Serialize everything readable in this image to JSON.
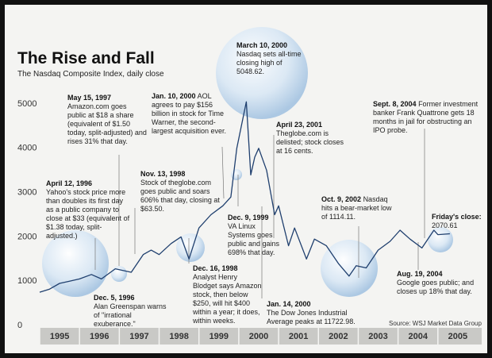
{
  "chart_data": {
    "type": "line",
    "title": "The Rise and Fall",
    "subtitle": "The Nasdaq Composite Index, daily close",
    "source": "Source: WSJ Market Data Group",
    "color": "#1f3f6e",
    "grid": false,
    "xlim": [
      1995,
      2006.1
    ],
    "xticks": [
      1995,
      1996,
      1997,
      1998,
      1999,
      2000,
      2001,
      2002,
      2003,
      2004,
      2005
    ],
    "ylim": [
      0,
      5400
    ],
    "yticks": [
      0,
      1000,
      2000,
      3000,
      4000,
      5000
    ],
    "series": [
      {
        "name": "Nasdaq Composite",
        "x": [
          1995.0,
          1995.25,
          1995.5,
          1995.75,
          1996.0,
          1996.3,
          1996.55,
          1996.9,
          1997.3,
          1997.6,
          1997.8,
          1998.0,
          1998.3,
          1998.55,
          1998.75,
          1999.0,
          1999.3,
          1999.6,
          1999.8,
          1999.95,
          2000.19,
          2000.3,
          2000.4,
          2000.5,
          2000.7,
          2000.9,
          2001.0,
          2001.25,
          2001.4,
          2001.7,
          2001.9,
          2002.2,
          2002.5,
          2002.77,
          2002.95,
          2003.2,
          2003.5,
          2003.8,
          2004.05,
          2004.3,
          2004.6,
          2004.9,
          2005.0,
          2005.3
        ],
        "values": [
          750,
          820,
          950,
          1000,
          1050,
          1150,
          1050,
          1280,
          1200,
          1600,
          1700,
          1600,
          1850,
          2000,
          1500,
          2200,
          2500,
          2700,
          2900,
          4000,
          5048.62,
          3400,
          3800,
          4000,
          3500,
          2500,
          2700,
          1800,
          2200,
          1500,
          1950,
          1800,
          1400,
          1114.11,
          1350,
          1300,
          1700,
          1900,
          2150,
          1950,
          1750,
          2150,
          2050,
          2070.61
        ]
      }
    ],
    "annotations": [
      {
        "date": "March 10, 2000",
        "text": "Nasdaq sets all-time closing high of 5048.62."
      },
      {
        "date": "May 15, 1997",
        "text": "Amazon.com goes public at $18 a share (equivalent of $1.50 today, split-adjusted) and rises 31% that day."
      },
      {
        "date": "Jan. 10, 2000",
        "text": "AOL agrees to pay $156 billion in stock for Time Warner, the second-largest acquisition ever."
      },
      {
        "date": "April 23, 2001",
        "text": "Theglobe.com is delisted; stock closes at 16 cents."
      },
      {
        "date": "Sept. 8, 2004",
        "text": "Former investment banker Frank Quattrone gets 18 months in jail for obstructing an IPO probe."
      },
      {
        "date": "April 12, 1996",
        "text": "Yahoo's stock price more than doubles its first day as a public company to close at $33 (equivalent of $1.38 today, split-adjusted.)"
      },
      {
        "date": "Nov. 13, 1998",
        "text": "Stock of theglobe.com goes public and soars 606% that day, closing at $63.50."
      },
      {
        "date": "Oct. 9, 2002",
        "text": "Nasdaq hits a bear-market low of 1114.11."
      },
      {
        "date": "Friday's close:",
        "text": "2070.61"
      },
      {
        "date": "Dec. 9, 1999",
        "text": "VA Linux Systems goes public and gains 698% that day."
      },
      {
        "date": "Dec. 16, 1998",
        "text": "Analyst Henry Blodget says Amazon stock, then below $250, will hit $400 within a year; it does, within weeks."
      },
      {
        "date": "Dec. 5, 1996",
        "text": "Alan Greenspan warns of \"irrational exuberance.\""
      },
      {
        "date": "Jan. 14, 2000",
        "text": "The Dow Jones Industrial Average peaks at 11722.98."
      },
      {
        "date": "Aug. 19, 2004",
        "text": "Google goes public; and closes up 18% that day."
      }
    ]
  }
}
